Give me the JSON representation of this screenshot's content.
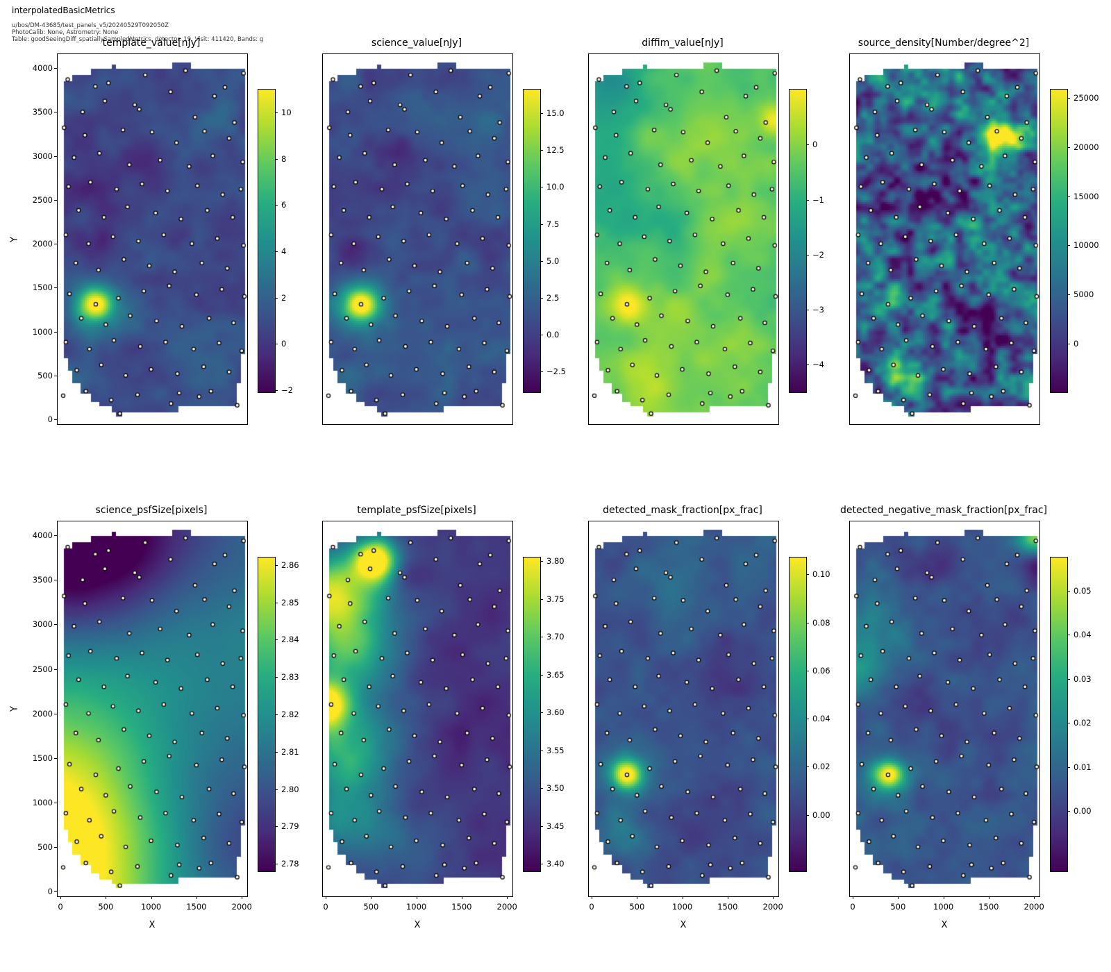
{
  "header": {
    "title": "interpolatedBasicMetrics",
    "line1": "u/bos/DM-43685/test_panels_v5/20240529T092050Z",
    "line2": "PhotoCalib: None, Astrometry: None",
    "line3": "Table: goodSeeingDiff_spatiallySampledMetrics, detector: 19, Visit: 411420, Bands: g"
  },
  "axis": {
    "x_label": "X",
    "y_label": "Y",
    "x_ticks": [
      0,
      500,
      1000,
      1500,
      2000
    ],
    "y_ticks": [
      0,
      500,
      1000,
      1500,
      2000,
      2500,
      3000,
      3500,
      4000
    ],
    "x_range": [
      -31,
      2060
    ],
    "y_range": [
      -55,
      4158
    ]
  },
  "style": {
    "point_fill": "#fdf3e3",
    "point_edge": "#000000",
    "viridis": [
      "#440154",
      "#472c7a",
      "#3b518b",
      "#2c718e",
      "#21908d",
      "#27ad81",
      "#5cc863",
      "#aadc32",
      "#fde725"
    ]
  },
  "footprint": [
    [
      30,
      700
    ],
    [
      80,
      700
    ],
    [
      80,
      560
    ],
    [
      140,
      560
    ],
    [
      140,
      420
    ],
    [
      230,
      420
    ],
    [
      230,
      290
    ],
    [
      330,
      290
    ],
    [
      330,
      200
    ],
    [
      440,
      200
    ],
    [
      440,
      140
    ],
    [
      560,
      140
    ],
    [
      560,
      90
    ],
    [
      620,
      90
    ],
    [
      620,
      40
    ],
    [
      680,
      40
    ],
    [
      680,
      90
    ],
    [
      1300,
      90
    ],
    [
      1300,
      150
    ],
    [
      1940,
      150
    ],
    [
      1940,
      400
    ],
    [
      1990,
      400
    ],
    [
      1990,
      750
    ],
    [
      2040,
      750
    ],
    [
      2040,
      3990
    ],
    [
      1450,
      3990
    ],
    [
      1450,
      4060
    ],
    [
      1240,
      4060
    ],
    [
      1240,
      3990
    ],
    [
      620,
      3990
    ],
    [
      620,
      4040
    ],
    [
      560,
      4040
    ],
    [
      560,
      3990
    ],
    [
      330,
      3990
    ],
    [
      330,
      3930
    ],
    [
      120,
      3930
    ],
    [
      120,
      3850
    ],
    [
      30,
      3850
    ]
  ],
  "points": [
    [
      80,
      3870
    ],
    [
      385,
      3790
    ],
    [
      530,
      3830
    ],
    [
      935,
      3920
    ],
    [
      1215,
      3730
    ],
    [
      1380,
      3970
    ],
    [
      1815,
      3780
    ],
    [
      2020,
      3940
    ],
    [
      245,
      3500
    ],
    [
      490,
      3625
    ],
    [
      820,
      3580
    ],
    [
      870,
      3530
    ],
    [
      1485,
      3440
    ],
    [
      1700,
      3680
    ],
    [
      1920,
      3380
    ],
    [
      40,
      3320
    ],
    [
      270,
      3235
    ],
    [
      690,
      3295
    ],
    [
      1010,
      3270
    ],
    [
      1280,
      3150
    ],
    [
      1590,
      3280
    ],
    [
      1860,
      3200
    ],
    [
      150,
      2980
    ],
    [
      430,
      3030
    ],
    [
      760,
      2900
    ],
    [
      1100,
      2950
    ],
    [
      1420,
      2880
    ],
    [
      1680,
      3000
    ],
    [
      2010,
      2930
    ],
    [
      90,
      2650
    ],
    [
      330,
      2700
    ],
    [
      620,
      2620
    ],
    [
      900,
      2680
    ],
    [
      1180,
      2600
    ],
    [
      1510,
      2660
    ],
    [
      1790,
      2560
    ],
    [
      1990,
      2620
    ],
    [
      200,
      2380
    ],
    [
      480,
      2300
    ],
    [
      740,
      2420
    ],
    [
      1050,
      2350
    ],
    [
      1330,
      2280
    ],
    [
      1620,
      2380
    ],
    [
      1900,
      2300
    ],
    [
      60,
      2100
    ],
    [
      310,
      2000
    ],
    [
      580,
      2080
    ],
    [
      860,
      2030
    ],
    [
      1140,
      2100
    ],
    [
      1450,
      2000
    ],
    [
      1730,
      2060
    ],
    [
      2020,
      1980
    ],
    [
      170,
      1780
    ],
    [
      420,
      1700
    ],
    [
      700,
      1820
    ],
    [
      980,
      1750
    ],
    [
      1260,
      1680
    ],
    [
      1560,
      1780
    ],
    [
      1840,
      1720
    ],
    [
      100,
      1430
    ],
    [
      390,
      1310
    ],
    [
      640,
      1380
    ],
    [
      920,
      1460
    ],
    [
      1200,
      1520
    ],
    [
      1500,
      1420
    ],
    [
      1780,
      1480
    ],
    [
      2030,
      1400
    ],
    [
      230,
      1150
    ],
    [
      500,
      1080
    ],
    [
      770,
      1180
    ],
    [
      1060,
      1120
    ],
    [
      1340,
      1060
    ],
    [
      1640,
      1150
    ],
    [
      1910,
      1100
    ],
    [
      60,
      880
    ],
    [
      320,
      800
    ],
    [
      590,
      900
    ],
    [
      880,
      830
    ],
    [
      1160,
      880
    ],
    [
      1470,
      800
    ],
    [
      1750,
      870
    ],
    [
      2000,
      780
    ],
    [
      180,
      560
    ],
    [
      450,
      620
    ],
    [
      720,
      500
    ],
    [
      1000,
      570
    ],
    [
      1290,
      520
    ],
    [
      1580,
      600
    ],
    [
      1860,
      540
    ],
    [
      30,
      270
    ],
    [
      280,
      320
    ],
    [
      560,
      220
    ],
    [
      655,
      65
    ],
    [
      850,
      280
    ],
    [
      1220,
      180
    ],
    [
      1310,
      300
    ],
    [
      1530,
      260
    ],
    [
      1660,
      320
    ],
    [
      1950,
      160
    ]
  ],
  "chart_data": [
    {
      "type": "heatmap",
      "title": "template_value[nJy]",
      "colorbar": {
        "vmin": -2.1,
        "vmax": 11.0,
        "ticks": [
          [
            10,
            "10"
          ],
          [
            8,
            "8"
          ],
          [
            6,
            "6"
          ],
          [
            4,
            "4"
          ],
          [
            2,
            "2"
          ],
          [
            0,
            "0"
          ],
          [
            -2,
            "−2"
          ]
        ]
      },
      "field": {
        "base": 0.22,
        "blobs": [
          [
            390,
            1310,
            120,
            0.55
          ],
          [
            390,
            1310,
            260,
            0.3
          ],
          [
            330,
            1850,
            180,
            -0.13
          ],
          [
            890,
            2950,
            200,
            -0.1
          ],
          [
            300,
            2700,
            250,
            -0.08
          ],
          [
            1500,
            600,
            300,
            0.06
          ],
          [
            1700,
            3400,
            250,
            0.07
          ],
          [
            150,
            350,
            200,
            0.1
          ]
        ],
        "noise": {
          "scale": 260,
          "amp": 0.055,
          "seed": 11
        }
      }
    },
    {
      "type": "heatmap",
      "title": "science_value[nJy]",
      "colorbar": {
        "vmin": -3.9,
        "vmax": 16.6,
        "ticks": [
          [
            15,
            "15.0"
          ],
          [
            12.5,
            "12.5"
          ],
          [
            10,
            "10.0"
          ],
          [
            7.5,
            "7.5"
          ],
          [
            5,
            "5.0"
          ],
          [
            2.5,
            "2.5"
          ],
          [
            0,
            "0.0"
          ],
          [
            -2.5,
            "−2.5"
          ]
        ]
      },
      "field": {
        "base": 0.24,
        "blobs": [
          [
            390,
            1310,
            120,
            0.55
          ],
          [
            390,
            1310,
            260,
            0.3
          ],
          [
            330,
            1850,
            180,
            -0.13
          ],
          [
            890,
            2950,
            200,
            -0.1
          ],
          [
            300,
            2700,
            250,
            -0.08
          ],
          [
            1500,
            600,
            300,
            0.06
          ],
          [
            1700,
            3400,
            250,
            0.07
          ],
          [
            150,
            350,
            200,
            0.1
          ]
        ],
        "noise": {
          "scale": 260,
          "amp": 0.055,
          "seed": 22
        }
      }
    },
    {
      "type": "heatmap",
      "title": "diffim_value[nJy]",
      "colorbar": {
        "vmin": -4.5,
        "vmax": 1.0,
        "ticks": [
          [
            0,
            "0"
          ],
          [
            -1,
            "−1"
          ],
          [
            -2,
            "−2"
          ],
          [
            -3,
            "−3"
          ],
          [
            -4,
            "−4"
          ]
        ]
      },
      "field": {
        "base": 0.72,
        "blobs": [
          [
            390,
            1310,
            150,
            0.26
          ],
          [
            1600,
            2400,
            500,
            0.09
          ],
          [
            1000,
            3300,
            400,
            0.08
          ],
          [
            250,
            3800,
            300,
            -0.22
          ],
          [
            150,
            2900,
            300,
            -0.13
          ],
          [
            700,
            2300,
            350,
            -0.1
          ],
          [
            950,
            1000,
            450,
            0.1
          ],
          [
            2020,
            3400,
            120,
            0.26
          ],
          [
            600,
            300,
            350,
            0.12
          ],
          [
            1800,
            700,
            350,
            0.1
          ]
        ],
        "noise": {
          "scale": 320,
          "amp": 0.05,
          "seed": 33
        }
      }
    },
    {
      "type": "heatmap",
      "title": "source_density[Number/degree^2]",
      "colorbar": {
        "vmin": -4950,
        "vmax": 25850,
        "ticks": [
          [
            25000,
            "25000"
          ],
          [
            20000,
            "20000"
          ],
          [
            15000,
            "15000"
          ],
          [
            10000,
            "10000"
          ],
          [
            5000,
            "5000"
          ],
          [
            0,
            "0"
          ]
        ]
      },
      "field": {
        "base": 0.3,
        "blobs": [
          [
            1640,
            3230,
            130,
            0.72
          ],
          [
            1640,
            3230,
            300,
            0.2
          ],
          [
            600,
            530,
            160,
            0.52
          ],
          [
            280,
            1350,
            200,
            0.22
          ],
          [
            1050,
            3800,
            200,
            0.2
          ],
          [
            350,
            3850,
            160,
            0.18
          ],
          [
            1300,
            2050,
            200,
            0.18
          ],
          [
            2000,
            1200,
            180,
            0.2
          ],
          [
            900,
            2600,
            250,
            -0.2
          ],
          [
            1500,
            900,
            220,
            -0.18
          ],
          [
            400,
            2500,
            200,
            -0.15
          ],
          [
            1300,
            3300,
            180,
            -0.2
          ],
          [
            100,
            800,
            200,
            -0.15
          ]
        ],
        "noise": {
          "scale": 150,
          "amp": 0.26,
          "seed": 44
        }
      }
    },
    {
      "type": "heatmap",
      "title": "science_psfSize[pixels]",
      "colorbar": {
        "vmin": 2.778,
        "vmax": 2.862,
        "ticks": [
          [
            2.86,
            "2.86"
          ],
          [
            2.85,
            "2.85"
          ],
          [
            2.84,
            "2.84"
          ],
          [
            2.83,
            "2.83"
          ],
          [
            2.82,
            "2.82"
          ],
          [
            2.81,
            "2.81"
          ],
          [
            2.8,
            "2.80"
          ],
          [
            2.79,
            "2.79"
          ],
          [
            2.78,
            "2.78"
          ]
        ]
      },
      "field": {
        "base": 0.55,
        "blobs": [
          [
            -100,
            200,
            900,
            0.58
          ],
          [
            -50,
            1500,
            700,
            0.18
          ],
          [
            50,
            3950,
            750,
            -0.58
          ],
          [
            600,
            4150,
            700,
            -0.22
          ],
          [
            2100,
            4100,
            900,
            -0.2
          ],
          [
            2150,
            300,
            800,
            -0.3
          ],
          [
            2100,
            1500,
            900,
            -0.12
          ]
        ],
        "noise": {
          "scale": 600,
          "amp": 0.015,
          "seed": 55
        }
      }
    },
    {
      "type": "heatmap",
      "title": "template_psfSize[pixels]",
      "colorbar": {
        "vmin": 3.39,
        "vmax": 3.805,
        "ticks": [
          [
            3.8,
            "3.80"
          ],
          [
            3.75,
            "3.75"
          ],
          [
            3.7,
            "3.70"
          ],
          [
            3.65,
            "3.65"
          ],
          [
            3.6,
            "3.60"
          ],
          [
            3.55,
            "3.55"
          ],
          [
            3.5,
            "3.50"
          ],
          [
            3.45,
            "3.45"
          ],
          [
            3.4,
            "3.40"
          ]
        ]
      },
      "field": {
        "base": 0.16,
        "blobs": [
          [
            0,
            2100,
            180,
            0.9
          ],
          [
            30,
            3300,
            300,
            0.5
          ],
          [
            550,
            3720,
            160,
            0.85
          ],
          [
            350,
            3500,
            350,
            0.35
          ],
          [
            150,
            2700,
            300,
            0.4
          ],
          [
            100,
            1500,
            350,
            0.35
          ],
          [
            250,
            800,
            300,
            0.28
          ],
          [
            500,
            1800,
            400,
            0.22
          ],
          [
            600,
            2800,
            350,
            0.2
          ],
          [
            850,
            3560,
            160,
            -0.14
          ],
          [
            800,
            450,
            400,
            0.12
          ],
          [
            1500,
            2000,
            700,
            -0.03
          ]
        ],
        "noise": {
          "scale": 350,
          "amp": 0.045,
          "seed": 66
        }
      }
    },
    {
      "type": "heatmap",
      "title": "detected_mask_fraction[px_frac]",
      "colorbar": {
        "vmin": -0.0235,
        "vmax": 0.107,
        "ticks": [
          [
            0.1,
            "0.10"
          ],
          [
            0.08,
            "0.08"
          ],
          [
            0.06,
            "0.06"
          ],
          [
            0.04,
            "0.04"
          ],
          [
            0.02,
            "0.02"
          ],
          [
            0,
            "0.00"
          ]
        ]
      },
      "field": {
        "base": 0.25,
        "blobs": [
          [
            390,
            1310,
            110,
            0.62
          ],
          [
            390,
            1310,
            230,
            0.22
          ],
          [
            900,
            3400,
            350,
            0.1
          ],
          [
            350,
            620,
            180,
            0.16
          ],
          [
            1600,
            2500,
            300,
            -0.06
          ],
          [
            1200,
            800,
            250,
            -0.05
          ],
          [
            1700,
            3800,
            250,
            0.06
          ]
        ],
        "noise": {
          "scale": 280,
          "amp": 0.05,
          "seed": 77
        }
      }
    },
    {
      "type": "heatmap",
      "title": "detected_negative_mask_fraction[px_frac]",
      "colorbar": {
        "vmin": -0.0137,
        "vmax": 0.0575,
        "ticks": [
          [
            0.05,
            "0.05"
          ],
          [
            0.04,
            "0.04"
          ],
          [
            0.03,
            "0.03"
          ],
          [
            0.02,
            "0.02"
          ],
          [
            0.01,
            "0.01"
          ],
          [
            0,
            "0.00"
          ]
        ]
      },
      "field": {
        "base": 0.28,
        "blobs": [
          [
            390,
            1310,
            110,
            0.6
          ],
          [
            390,
            1310,
            220,
            0.16
          ],
          [
            2020,
            3980,
            120,
            0.55
          ],
          [
            2030,
            3620,
            150,
            -0.2
          ],
          [
            50,
            2500,
            250,
            0.25
          ],
          [
            300,
            3100,
            300,
            0.12
          ],
          [
            900,
            3700,
            300,
            -0.1
          ],
          [
            1500,
            3000,
            300,
            -0.08
          ],
          [
            700,
            2000,
            300,
            -0.08
          ],
          [
            1400,
            1200,
            350,
            -0.06
          ]
        ],
        "noise": {
          "scale": 260,
          "amp": 0.06,
          "seed": 88
        }
      }
    }
  ]
}
